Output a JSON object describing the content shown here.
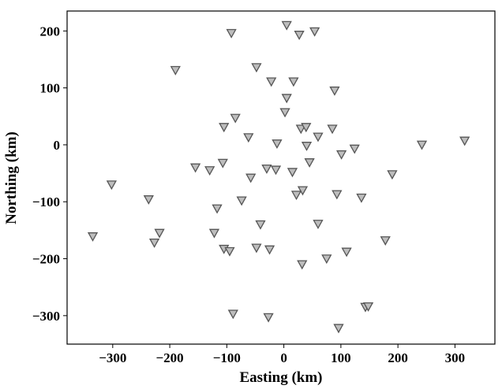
{
  "chart_data": {
    "type": "scatter",
    "xlabel": "Easting (km)",
    "ylabel": "Northing (km)",
    "xlim": [
      -380,
      370
    ],
    "ylim": [
      -350,
      235
    ],
    "xticks": [
      -300,
      -200,
      -100,
      0,
      100,
      200,
      300
    ],
    "yticks": [
      200,
      100,
      0,
      -100,
      -200,
      -300
    ],
    "marker": "triangle-down",
    "marker_fill": "#bdbdbd",
    "marker_edge": "#555555",
    "grid": false,
    "series": [
      {
        "points": [
          [
            5,
            210
          ],
          [
            -92,
            196
          ],
          [
            27,
            193
          ],
          [
            54,
            199
          ],
          [
            -190,
            131
          ],
          [
            -48,
            136
          ],
          [
            -22,
            111
          ],
          [
            17,
            111
          ],
          [
            89,
            95
          ],
          [
            5,
            82
          ],
          [
            2,
            57
          ],
          [
            -85,
            47
          ],
          [
            -105,
            31
          ],
          [
            30,
            28
          ],
          [
            39,
            31
          ],
          [
            85,
            28
          ],
          [
            -62,
            13
          ],
          [
            60,
            14
          ],
          [
            -12,
            2
          ],
          [
            40,
            -2
          ],
          [
            124,
            -7
          ],
          [
            242,
            0
          ],
          [
            317,
            7
          ],
          [
            101,
            -17
          ],
          [
            -155,
            -40
          ],
          [
            -107,
            -32
          ],
          [
            -130,
            -45
          ],
          [
            -30,
            -42
          ],
          [
            -14,
            -44
          ],
          [
            45,
            -31
          ],
          [
            15,
            -48
          ],
          [
            190,
            -52
          ],
          [
            -58,
            -58
          ],
          [
            -302,
            -70
          ],
          [
            33,
            -80
          ],
          [
            22,
            -88
          ],
          [
            93,
            -87
          ],
          [
            -237,
            -96
          ],
          [
            -74,
            -98
          ],
          [
            136,
            -93
          ],
          [
            -117,
            -112
          ],
          [
            -335,
            -161
          ],
          [
            -218,
            -155
          ],
          [
            -41,
            -140
          ],
          [
            60,
            -139
          ],
          [
            -122,
            -155
          ],
          [
            -227,
            -172
          ],
          [
            178,
            -168
          ],
          [
            -105,
            -183
          ],
          [
            -95,
            -187
          ],
          [
            -48,
            -181
          ],
          [
            -25,
            -184
          ],
          [
            110,
            -188
          ],
          [
            75,
            -200
          ],
          [
            32,
            -210
          ],
          [
            -89,
            -297
          ],
          [
            -27,
            -303
          ],
          [
            143,
            -285
          ],
          [
            148,
            -284
          ],
          [
            96,
            -322
          ]
        ]
      }
    ]
  }
}
